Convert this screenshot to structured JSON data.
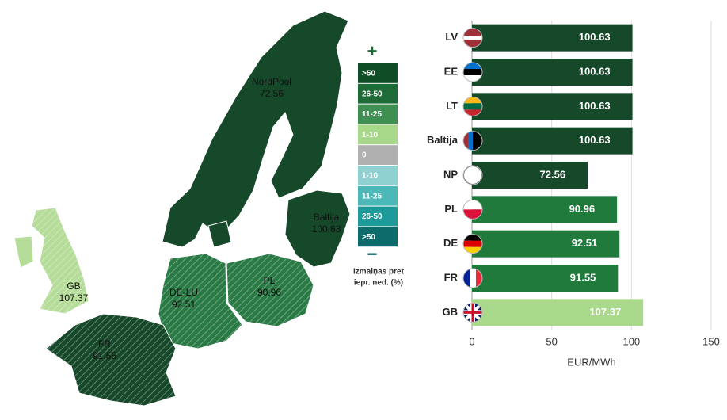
{
  "chart_data": [
    {
      "type": "map",
      "regions": [
        {
          "name": "NordPool",
          "value": 72.56,
          "color": "#16482a"
        },
        {
          "name": "Baltija",
          "value": 100.63,
          "color": "#16482a"
        },
        {
          "name": "GB",
          "value": 107.37,
          "color": "#b5dc98"
        },
        {
          "name": "DE-LU",
          "value": 92.51,
          "color": "#2a7a45"
        },
        {
          "name": "PL",
          "value": 90.96,
          "color": "#2a7a45"
        },
        {
          "name": "FR",
          "value": 91.55,
          "color": "#16482a"
        }
      ],
      "legend": {
        "plus": "+",
        "minus": "−",
        "bins": [
          {
            "label": ">50",
            "color": "#0f4d26"
          },
          {
            "label": "26-50",
            "color": "#1f6b38"
          },
          {
            "label": "11-25",
            "color": "#3f8f52"
          },
          {
            "label": "1-10",
            "color": "#a8d88a"
          },
          {
            "label": "0",
            "color": "#b0b0b0"
          },
          {
            "label": "1-10",
            "color": "#8fd1d1"
          },
          {
            "label": "11-25",
            "color": "#4db8b8"
          },
          {
            "label": "26-50",
            "color": "#1e9a9a"
          },
          {
            "label": ">50",
            "color": "#0e6b6b"
          }
        ],
        "caption": [
          "Izmaiņas pret",
          "iepr. ned. (%)"
        ]
      }
    },
    {
      "type": "hbar",
      "categories": [
        "LV",
        "EE",
        "LT",
        "Baltija",
        "NP",
        "PL",
        "DE",
        "FR",
        "GB"
      ],
      "values": [
        100.63,
        100.63,
        100.63,
        100.63,
        72.56,
        90.96,
        92.51,
        91.55,
        107.37
      ],
      "colors": [
        "#16482a",
        "#16482a",
        "#16482a",
        "#16482a",
        "#16482a",
        "#1f7a3c",
        "#1f7a3c",
        "#1f7a3c",
        "#a9d98b"
      ],
      "xlim": [
        0,
        150
      ],
      "xticks": [
        0,
        50,
        100,
        150
      ],
      "xlabel": "EUR/MWh",
      "grid": true
    }
  ]
}
